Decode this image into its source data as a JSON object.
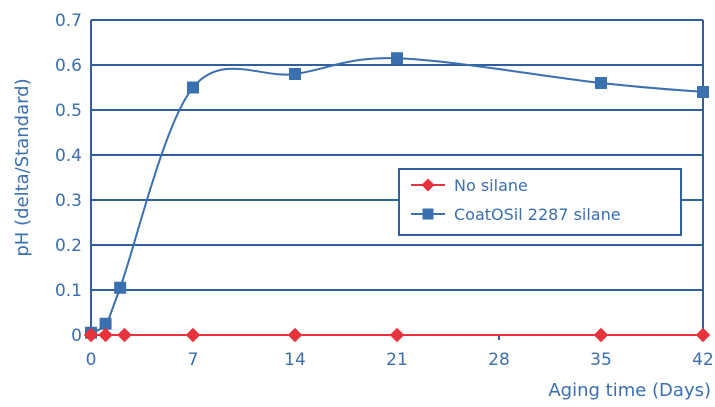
{
  "chart_data": {
    "type": "line",
    "title": "",
    "xlabel": "Aging time (Days)",
    "ylabel": "pH (delta/Standard)",
    "xlim": [
      0,
      42
    ],
    "ylim": [
      0,
      0.7
    ],
    "x_ticks": [
      "0",
      "7",
      "14",
      "21",
      "28",
      "35",
      "42"
    ],
    "y_ticks": [
      "0",
      "0.1",
      "0.2",
      "0.3",
      "0.4",
      "0.5",
      "0.6",
      "0.7"
    ],
    "grid": "horizontal",
    "legend_position": "center-right",
    "series": [
      {
        "name": "No silane",
        "color": "#e8323c",
        "marker": "diamond",
        "x": [
          0,
          1,
          2.3,
          7,
          14,
          21,
          35,
          42
        ],
        "y": [
          0,
          0,
          0,
          0,
          0,
          0,
          0,
          0
        ]
      },
      {
        "name": "CoatOSil 2287 silane",
        "color": "#3a6fb0",
        "marker": "square",
        "x": [
          0,
          1,
          2,
          7,
          14,
          21,
          35,
          42
        ],
        "y": [
          0.005,
          0.025,
          0.105,
          0.55,
          0.58,
          0.615,
          0.56,
          0.54
        ]
      }
    ],
    "axis_color": "#3a6fb0",
    "grid_color": "#2f5f9f"
  }
}
